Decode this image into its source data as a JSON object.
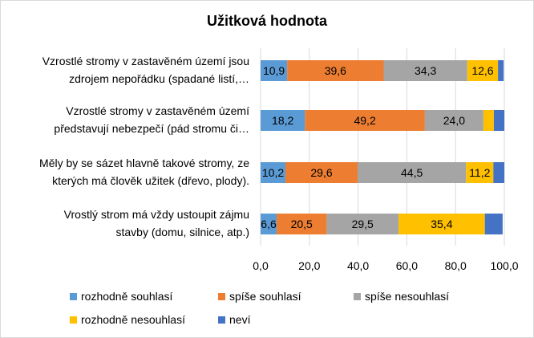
{
  "chart_data": {
    "type": "bar",
    "orientation": "horizontal",
    "stacked": true,
    "title": "Užitková hodnota",
    "categories": [
      [
        "Vzrostlé stromy v zastavěném území jsou",
        "zdrojem nepořádku (spadané listí,…"
      ],
      [
        "Vzrostlé stromy v zastavěném území",
        "představují nebezpečí (pád stromu či…"
      ],
      [
        "Měly by se sázet hlavně takové stromy, ze",
        "kterých má člověk užitek (dřevo, plody)."
      ],
      [
        "Vrostlý strom má vždy ustoupit zájmu",
        "stavby (domu, silnice, atp.)"
      ]
    ],
    "series": [
      {
        "name": "rozhodně souhlasí",
        "color": "#5b9bd5",
        "values": [
          10.9,
          18.2,
          10.2,
          6.6
        ],
        "labels": [
          "10,9",
          "18,2",
          "10,2",
          "6,6"
        ]
      },
      {
        "name": "spíše souhlasí",
        "color": "#ed7d31",
        "values": [
          39.6,
          49.2,
          29.6,
          20.5
        ],
        "labels": [
          "39,6",
          "49,2",
          "29,6",
          "20,5"
        ]
      },
      {
        "name": "spíše nesouhlasí",
        "color": "#a5a5a5",
        "values": [
          34.3,
          24.0,
          44.5,
          29.5
        ],
        "labels": [
          "34,3",
          "24,0",
          "44,5",
          "29,5"
        ]
      },
      {
        "name": "rozhodně nesouhlasí",
        "color": "#ffc000",
        "values": [
          12.6,
          4.3,
          11.2,
          35.4
        ],
        "labels": [
          "12,6",
          "",
          "11,2",
          "35,4"
        ]
      },
      {
        "name": "neví",
        "color": "#4472c4",
        "values": [
          2.3,
          4.3,
          4.5,
          7.3
        ],
        "labels": [
          "",
          "",
          "",
          ""
        ]
      }
    ],
    "xlim": [
      0,
      100
    ],
    "xticks": [
      0,
      20,
      40,
      60,
      80,
      100
    ],
    "xtick_labels": [
      "0,0",
      "20,0",
      "40,0",
      "60,0",
      "80,0",
      "100,0"
    ],
    "grid": "vertical",
    "legend": "bottom"
  }
}
